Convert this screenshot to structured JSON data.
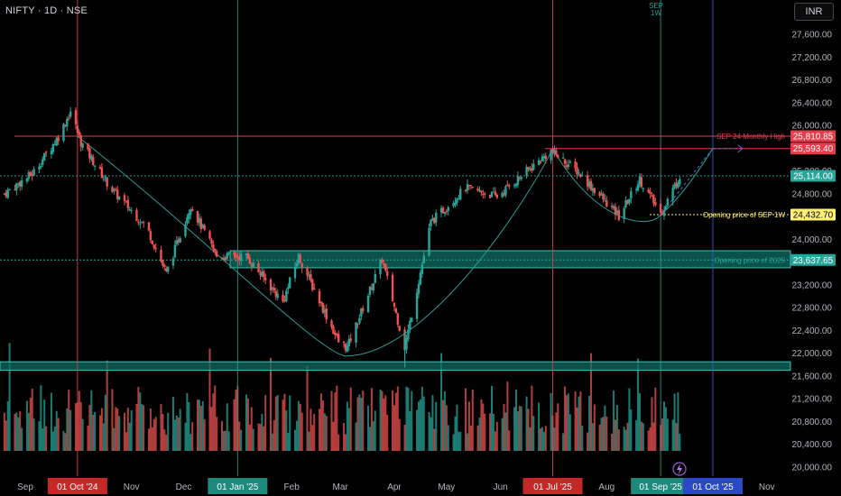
{
  "header": {
    "symbol": "NIFTY · 1D · NSE",
    "currency": "INR",
    "marker_label_1": "SEP",
    "marker_label_2": "1W"
  },
  "colors": {
    "background": "#000000",
    "up": "#26a69a",
    "down": "#ef5350",
    "grid_text": "#b2b5be",
    "red_line": "#e83c4c",
    "teal_line": "#2a9d8f",
    "blue_line": "#3c5cd8",
    "zone_fill": "#0f6e63",
    "yellow": "#fff176"
  },
  "chart_data": {
    "type": "candlestick",
    "y_ticks": [
      "27,600.00",
      "27,200.00",
      "26,800.00",
      "26,400.00",
      "26,000.00",
      "25,600.00",
      "25,200.00",
      "24,800.00",
      "24,400.00",
      "24,000.00",
      "23,600.00",
      "23,200.00",
      "22,800.00",
      "22,400.00",
      "22,000.00",
      "21,600.00",
      "21,200.00",
      "20,800.00",
      "20,400.00",
      "20,000.00"
    ],
    "y_tick_values": [
      27600,
      27200,
      26800,
      26400,
      26000,
      25600,
      25200,
      24800,
      24400,
      24000,
      23600,
      23200,
      22800,
      22400,
      22000,
      21600,
      21200,
      20800,
      20400,
      20000
    ],
    "x_ticks": [
      {
        "label": "Sep",
        "date": "2024-09-01"
      },
      {
        "label": "01 Oct '24",
        "date": "2024-10-01",
        "highlight": "red"
      },
      {
        "label": "Nov",
        "date": "2024-11-01"
      },
      {
        "label": "Dec",
        "date": "2024-12-01"
      },
      {
        "label": "01 Jan '25",
        "date": "2025-01-01",
        "highlight": "teal"
      },
      {
        "label": "Feb",
        "date": "2025-02-01"
      },
      {
        "label": "Mar",
        "date": "2025-03-01"
      },
      {
        "label": "Apr",
        "date": "2025-04-01"
      },
      {
        "label": "May",
        "date": "2025-05-01"
      },
      {
        "label": "Jun",
        "date": "2025-06-01"
      },
      {
        "label": "01 Jul '25",
        "date": "2025-07-01",
        "highlight": "red"
      },
      {
        "label": "Aug",
        "date": "2025-08-01"
      },
      {
        "label": "01 Sep '25",
        "date": "2025-09-01",
        "highlight": "teal"
      },
      {
        "label": "01 Oct '25",
        "date": "2025-10-01",
        "highlight": "blue"
      },
      {
        "label": "Nov",
        "date": "2025-11-01"
      }
    ],
    "price_key_points": [
      {
        "date": "2024-08-20",
        "close": 24800
      },
      {
        "date": "2024-09-05",
        "close": 25150
      },
      {
        "date": "2024-09-20",
        "close": 25800
      },
      {
        "date": "2024-09-27",
        "close": 26250
      },
      {
        "date": "2024-10-03",
        "close": 25700
      },
      {
        "date": "2024-10-20",
        "close": 24900
      },
      {
        "date": "2024-11-10",
        "close": 24200
      },
      {
        "date": "2024-11-21",
        "close": 23400
      },
      {
        "date": "2024-12-05",
        "close": 24600
      },
      {
        "date": "2024-12-20",
        "close": 23700
      },
      {
        "date": "2025-01-06",
        "close": 23700
      },
      {
        "date": "2025-01-27",
        "close": 22900
      },
      {
        "date": "2025-02-05",
        "close": 23700
      },
      {
        "date": "2025-02-28",
        "close": 22200
      },
      {
        "date": "2025-03-05",
        "close": 22100
      },
      {
        "date": "2025-03-25",
        "close": 23650
      },
      {
        "date": "2025-04-07",
        "close": 22100
      },
      {
        "date": "2025-04-22",
        "close": 24300
      },
      {
        "date": "2025-05-12",
        "close": 24900
      },
      {
        "date": "2025-05-30",
        "close": 24750
      },
      {
        "date": "2025-06-30",
        "close": 25550
      },
      {
        "date": "2025-07-15",
        "close": 25200
      },
      {
        "date": "2025-08-08",
        "close": 24400
      },
      {
        "date": "2025-08-20",
        "close": 25050
      },
      {
        "date": "2025-09-01",
        "close": 24450
      },
      {
        "date": "2025-09-12",
        "close": 25114
      }
    ],
    "levels": [
      {
        "name": "SEP 24 Monthly High",
        "value": 25810.85,
        "label": "25,810.85",
        "color": "#e83c4c",
        "text_label": "SEP 24 Monthly High"
      },
      {
        "name": "level-25593",
        "value": 25593.4,
        "label": "25,593.40",
        "color": "#e83c4c"
      },
      {
        "name": "last-price",
        "value": 25114.0,
        "label": "25,114.00",
        "color": "#26a69a"
      },
      {
        "name": "Opening price of SEP 1W",
        "value": 24432.7,
        "label": "24,432.70",
        "color": "#fff176",
        "text_label": "Opening price of SEP 1W"
      },
      {
        "name": "Opening price of 2025",
        "value": 23637.65,
        "label": "23,637.65",
        "color": "#26a69a",
        "text_label": "Opening price of 2025"
      }
    ],
    "zones": [
      {
        "from": 23500,
        "to": 23800
      },
      {
        "from": 21700,
        "to": 21850
      }
    ],
    "ylim": [
      20000,
      27900
    ],
    "grid": false
  }
}
